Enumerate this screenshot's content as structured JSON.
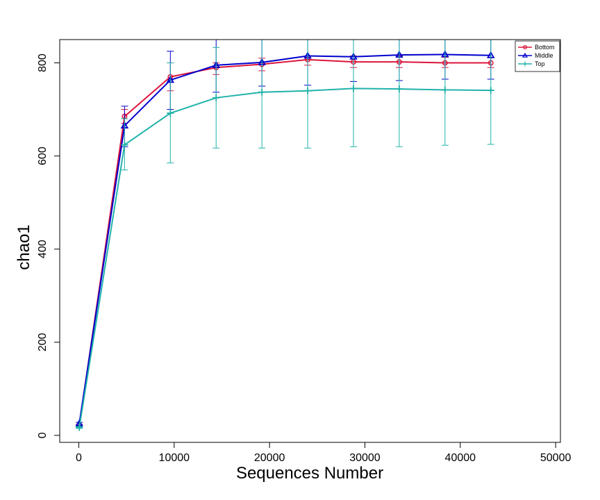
{
  "chart_data": {
    "type": "line",
    "title": "",
    "xlabel": "Sequences Number",
    "ylabel": "chao1",
    "xlim": [
      -2000,
      50500
    ],
    "ylim": [
      -15,
      850
    ],
    "x_ticks": [
      0,
      10000,
      20000,
      30000,
      40000,
      50000
    ],
    "x_tick_labels": [
      "0",
      "10000",
      "20000",
      "30000",
      "40000",
      "50000"
    ],
    "y_ticks": [
      0,
      200,
      400,
      600,
      800
    ],
    "y_tick_labels": [
      "0",
      "200",
      "400",
      "600",
      "800"
    ],
    "grid": false,
    "legend_position": "top-right",
    "x": [
      50,
      4800,
      9600,
      14400,
      19200,
      24000,
      28800,
      33600,
      38400,
      43200
    ],
    "series": [
      {
        "name": "Bottom",
        "color": "#dc143c",
        "marker": "circle",
        "values": [
          22,
          685,
          770,
          790,
          797,
          807,
          802,
          802,
          800,
          800
        ],
        "err_low": [
          20,
          670,
          740,
          775,
          783,
          795,
          790,
          790,
          790,
          790
        ],
        "err_high": [
          24,
          700,
          800,
          800,
          810,
          815,
          815,
          815,
          812,
          812
        ]
      },
      {
        "name": "Middle",
        "color": "#0000cd",
        "marker": "triangle",
        "values": [
          25,
          665,
          763,
          795,
          801,
          815,
          813,
          817,
          818,
          816
        ],
        "err_low": [
          22,
          620,
          700,
          737,
          750,
          752,
          760,
          762,
          765,
          765
        ],
        "err_high": [
          28,
          707,
          825,
          850,
          850,
          850,
          850,
          850,
          850,
          850
        ]
      },
      {
        "name": "Top",
        "color": "#20b2aa",
        "marker": "plus",
        "values": [
          17,
          624,
          692,
          725,
          737,
          740,
          745,
          744,
          742,
          741
        ],
        "err_low": [
          15,
          570,
          585,
          617,
          617,
          617,
          620,
          620,
          623,
          625
        ],
        "err_high": [
          19,
          680,
          800,
          833,
          850,
          850,
          850,
          850,
          850,
          850
        ]
      }
    ]
  }
}
